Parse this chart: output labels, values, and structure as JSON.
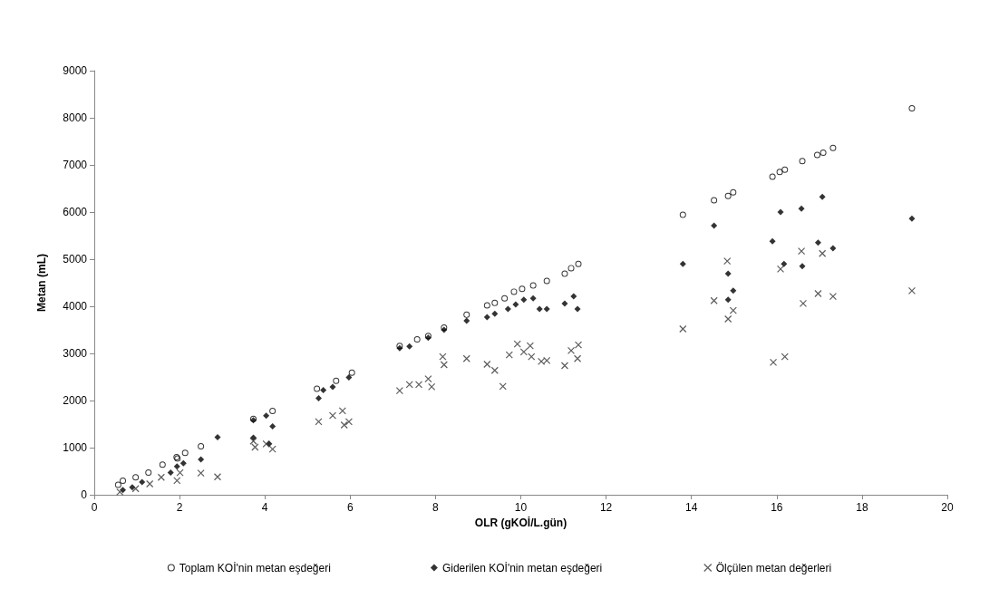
{
  "chart_data": {
    "type": "scatter",
    "xlabel": "OLR (gKOİ/L.gün)",
    "ylabel": "Metan (mL)",
    "xlim": [
      0,
      20
    ],
    "xticks": [
      0,
      2,
      4,
      6,
      8,
      10,
      12,
      14,
      16,
      18,
      20
    ],
    "ylim": [
      0,
      9000
    ],
    "yticks": [
      0,
      1000,
      2000,
      3000,
      4000,
      5000,
      6000,
      7000,
      8000,
      9000
    ],
    "grid": false,
    "legend": "bottom",
    "series": [
      {
        "name": "Toplam KOİ'nin metan eşdeğeri",
        "color": "#000000",
        "marker": "circle",
        "x": [
          0.56,
          0.67,
          0.97,
          1.27,
          1.6,
          1.93,
          1.95,
          2.13,
          2.5,
          3.73,
          4.18,
          5.22,
          5.67,
          6.04,
          7.16,
          7.57,
          7.83,
          8.2,
          8.73,
          9.21,
          9.39,
          9.62,
          9.84,
          10.03,
          10.29,
          10.61,
          11.03,
          11.18,
          11.35,
          13.8,
          14.53,
          14.86,
          14.98,
          15.9,
          16.07,
          16.19,
          16.6,
          16.95,
          17.09,
          17.32,
          19.17
        ],
        "values": [
          210,
          300,
          370,
          470,
          640,
          800,
          770,
          890,
          1030,
          1610,
          1780,
          2250,
          2420,
          2590,
          3160,
          3300,
          3370,
          3550,
          3820,
          4020,
          4070,
          4170,
          4310,
          4370,
          4440,
          4540,
          4690,
          4810,
          4900,
          5940,
          6250,
          6340,
          6420,
          6750,
          6850,
          6900,
          7080,
          7210,
          7260,
          7360,
          8200
        ]
      },
      {
        "name": "Giderilen KOİ'nin metan eşdeğeri",
        "color": "#000000",
        "marker": "diamond",
        "x": [
          0.67,
          0.89,
          1.12,
          1.79,
          1.94,
          2.09,
          2.5,
          2.89,
          3.73,
          3.73,
          4.03,
          4.18,
          4.1,
          5.26,
          5.37,
          5.59,
          5.97,
          7.16,
          7.39,
          7.83,
          8.2,
          8.73,
          9.21,
          9.39,
          9.7,
          9.88,
          10.07,
          10.29,
          10.44,
          10.61,
          11.03,
          11.24,
          11.33,
          13.8,
          14.53,
          14.86,
          14.98,
          14.86,
          15.9,
          16.09,
          16.17,
          16.58,
          16.6,
          16.97,
          17.07,
          17.32,
          19.17
        ],
        "values": [
          100,
          160,
          270,
          470,
          600,
          670,
          750,
          1220,
          1580,
          1210,
          1680,
          1450,
          1080,
          2050,
          2220,
          2290,
          2490,
          3110,
          3150,
          3330,
          3500,
          3690,
          3770,
          3840,
          3940,
          4040,
          4140,
          4170,
          3940,
          3940,
          4060,
          4210,
          3940,
          4900,
          5710,
          4690,
          4330,
          4140,
          5380,
          6000,
          4900,
          6070,
          4850,
          5350,
          6320,
          5230,
          5860
        ]
      },
      {
        "name": "Ölçülen metan değerleri",
        "color": "#333333",
        "marker": "cross",
        "x": [
          0.6,
          0.97,
          1.3,
          1.57,
          1.94,
          2.01,
          2.5,
          2.89,
          3.73,
          3.77,
          4.03,
          4.18,
          5.26,
          5.59,
          5.82,
          5.97,
          5.86,
          7.16,
          7.39,
          7.61,
          7.83,
          7.91,
          8.17,
          8.2,
          8.73,
          9.21,
          9.39,
          9.58,
          9.73,
          9.92,
          10.07,
          10.22,
          10.25,
          10.48,
          10.61,
          11.03,
          11.18,
          11.35,
          11.33,
          13.8,
          14.53,
          14.84,
          14.98,
          14.86,
          15.92,
          16.19,
          16.09,
          16.58,
          16.62,
          17.07,
          16.97,
          17.32,
          19.17
        ],
        "values": [
          60,
          130,
          230,
          370,
          300,
          470,
          460,
          380,
          1140,
          1010,
          1080,
          970,
          1550,
          1680,
          1780,
          1550,
          1480,
          2210,
          2340,
          2340,
          2460,
          2290,
          2930,
          2760,
          2890,
          2770,
          2640,
          2300,
          2970,
          3200,
          3030,
          3160,
          2930,
          2830,
          2850,
          2740,
          3060,
          3180,
          2890,
          3520,
          4120,
          4960,
          3910,
          3730,
          2810,
          2930,
          4790,
          5170,
          4060,
          5120,
          4270,
          4210,
          4330
        ]
      }
    ]
  }
}
